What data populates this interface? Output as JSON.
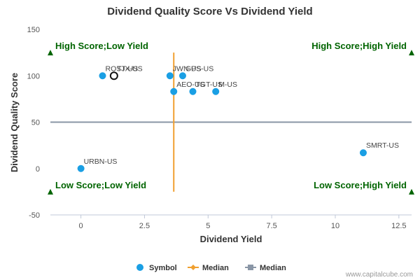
{
  "chart_data": {
    "type": "scatter",
    "title": "Dividend Quality Score Vs Dividend Yield",
    "xlabel": "Dividend Yield",
    "ylabel": "Dividend Quality Score",
    "xlim": [
      -1.2,
      13
    ],
    "ylim": [
      -50,
      150
    ],
    "xticks": [
      0,
      2.5,
      5,
      7.5,
      10,
      12.5
    ],
    "xtick_labels": [
      "0",
      "2.5",
      "5",
      "7.5",
      "10",
      "12.5"
    ],
    "yticks": [
      -50,
      0,
      50,
      100,
      150
    ],
    "ytick_labels": [
      "-50",
      "0",
      "50",
      "100",
      "150"
    ],
    "grid": false,
    "points": [
      {
        "label": "ROST-US",
        "x": 0.85,
        "y": 100,
        "highlight": false
      },
      {
        "label": "TJX-US",
        "x": 1.3,
        "y": 100,
        "highlight": true
      },
      {
        "label": "JWN-US",
        "x": 3.5,
        "y": 100,
        "highlight": false
      },
      {
        "label": "GPS-US",
        "x": 4.0,
        "y": 100,
        "highlight": false
      },
      {
        "label": "AEO-US",
        "x": 3.65,
        "y": 83,
        "highlight": false
      },
      {
        "label": "TGT-US",
        "x": 4.4,
        "y": 83,
        "highlight": false
      },
      {
        "label": "M-US",
        "x": 5.3,
        "y": 83,
        "highlight": false
      },
      {
        "label": "SMRT-US",
        "x": 11.1,
        "y": 17,
        "highlight": false
      },
      {
        "label": "URBN-US",
        "x": 0.0,
        "y": 0,
        "highlight": false
      }
    ],
    "median_x": 3.65,
    "median_x_range": [
      -25,
      125
    ],
    "median_y": 50,
    "quadrants": {
      "top_left": "High Score;Low Yield",
      "top_right": "High Score;High Yield",
      "bottom_left": "Low Score;Low Yield",
      "bottom_right": "Low Score;High Yield"
    },
    "legend": [
      {
        "name": "Symbol",
        "kind": "dot",
        "color": "#1a9fe4"
      },
      {
        "name": "Median",
        "kind": "line-diamond",
        "color": "#f0a030"
      },
      {
        "name": "Median",
        "kind": "line-square",
        "color": "#8a96a6"
      }
    ],
    "legend_position": "bottom",
    "colors": {
      "point": "#1a9fe4",
      "median_x": "#f0a030",
      "median_y": "#8a96a6",
      "quadrant_text": "#006400",
      "axis": "#c0c8d8"
    }
  },
  "credit": "www.capitalcube.com"
}
